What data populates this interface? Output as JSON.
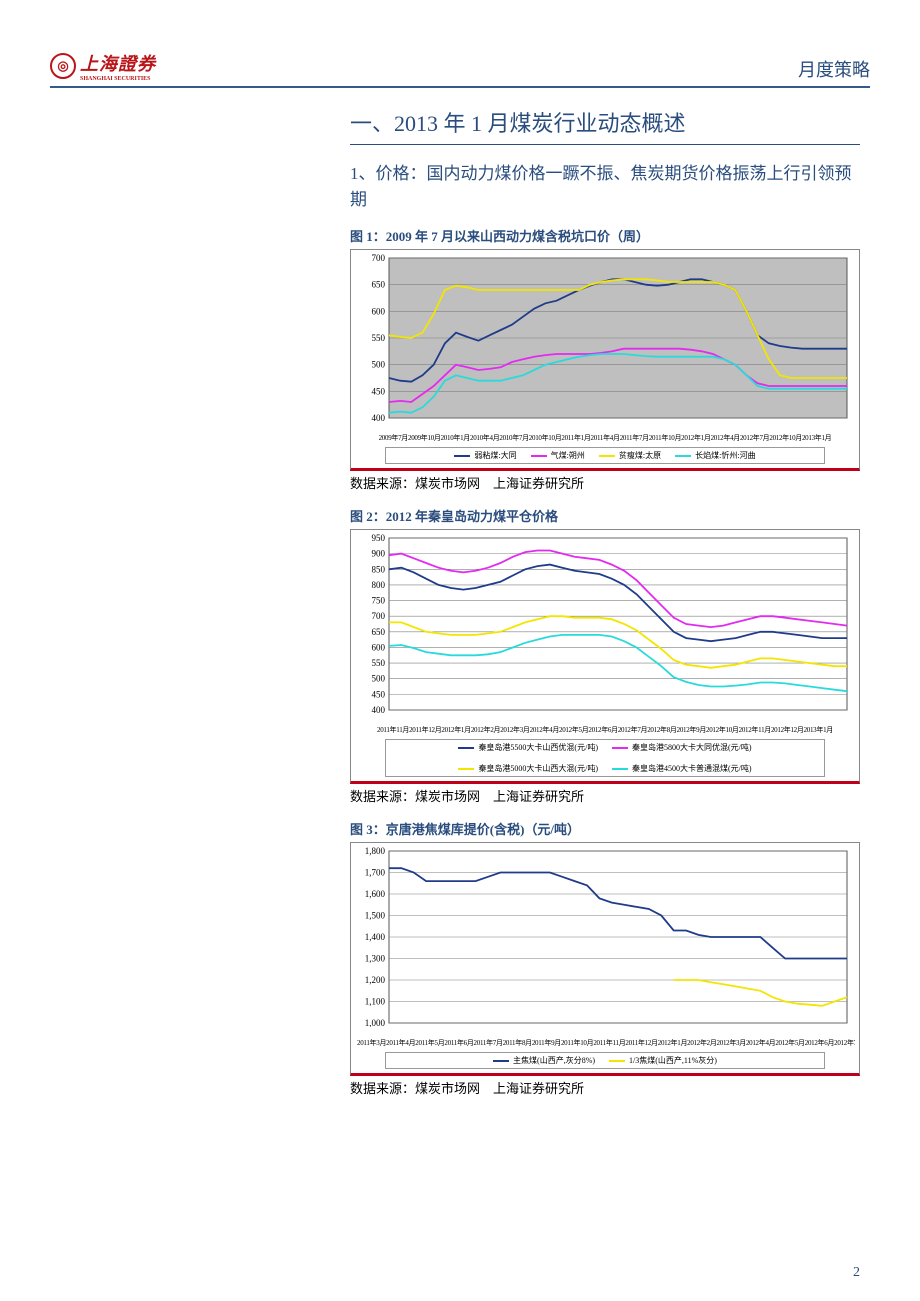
{
  "header": {
    "logo_text": "上海證券",
    "logo_sub": "SHANGHAI SECURITIES",
    "doc_type": "月度策略"
  },
  "section_title": "一、2013 年 1 月煤炭行业动态概述",
  "sub_title": "1、价格：国内动力煤价格一蹶不振、焦炭期货价格振荡上行引领预期",
  "page_num": "2",
  "source_text": "数据来源：煤炭市场网　上海证券研究所",
  "chart1": {
    "title": "图 1：2009 年 7 月以来山西动力煤含税坑口价（周）",
    "type": "line",
    "ylim": [
      400,
      700
    ],
    "ytick_step": 50,
    "plot_bg": "#bfbfbf",
    "grid_color": "#808080",
    "xaxis_text": "2009年7月2009年10月2010年1月2010年4月2010年7月2010年10月2011年1月2011年4月2011年7月2011年10月2012年1月2012年4月2012年7月2012年10月2013年1月",
    "series": [
      {
        "label": "弱粘煤:大同",
        "color": "#1f3b8a",
        "values": [
          475,
          470,
          468,
          480,
          500,
          540,
          560,
          552,
          545,
          555,
          565,
          575,
          590,
          605,
          615,
          620,
          630,
          640,
          648,
          655,
          660,
          660,
          655,
          650,
          648,
          650,
          655,
          660,
          660,
          655,
          650,
          640,
          600,
          555,
          540,
          535,
          532,
          530,
          530,
          530,
          530,
          530
        ]
      },
      {
        "label": "气煤:朔州",
        "color": "#e32af0",
        "values": [
          430,
          432,
          430,
          445,
          460,
          480,
          500,
          495,
          490,
          492,
          495,
          505,
          510,
          515,
          518,
          520,
          520,
          520,
          520,
          522,
          525,
          530,
          530,
          530,
          530,
          530,
          530,
          528,
          525,
          520,
          510,
          500,
          480,
          465,
          460,
          460,
          460,
          460,
          460,
          460,
          460,
          460
        ]
      },
      {
        "label": "贫瘦煤:太原",
        "color": "#f2e600",
        "values": [
          555,
          552,
          550,
          560,
          595,
          640,
          648,
          645,
          640,
          640,
          640,
          640,
          640,
          640,
          640,
          640,
          640,
          640,
          650,
          655,
          658,
          660,
          660,
          660,
          658,
          655,
          655,
          655,
          655,
          655,
          650,
          640,
          600,
          555,
          510,
          480,
          475,
          475,
          475,
          475,
          475,
          475
        ]
      },
      {
        "label": "长焰煤:忻州:河曲",
        "color": "#2adada",
        "values": [
          410,
          412,
          410,
          420,
          440,
          470,
          480,
          475,
          470,
          470,
          470,
          475,
          480,
          490,
          500,
          505,
          510,
          515,
          518,
          520,
          520,
          520,
          518,
          516,
          515,
          515,
          515,
          515,
          515,
          515,
          510,
          500,
          480,
          460,
          455,
          455,
          455,
          455,
          455,
          455,
          455,
          455
        ]
      }
    ]
  },
  "chart2": {
    "title": "图 2：2012 年秦皇岛动力煤平仓价格",
    "type": "line",
    "ylim": [
      400,
      950
    ],
    "ytick_step": 50,
    "plot_bg": "#ffffff",
    "grid_color": "#808080",
    "xaxis_text": "2011年11月2011年12月2012年1月2012年2月2012年3月2012年4月2012年5月2012年6月2012年7月2012年8月2012年9月2012年10月2012年11月2012年12月2013年1月",
    "series": [
      {
        "label": "秦皇岛港5500大卡山西优混(元/吨)",
        "color": "#1f3b8a",
        "values": [
          850,
          855,
          840,
          820,
          800,
          790,
          785,
          790,
          800,
          810,
          830,
          850,
          860,
          865,
          855,
          845,
          840,
          835,
          820,
          800,
          770,
          730,
          690,
          650,
          630,
          625,
          620,
          625,
          630,
          640,
          650,
          650,
          645,
          640,
          635,
          630,
          630,
          630
        ]
      },
      {
        "label": "秦皇岛港5800大卡大同优混(元/吨)",
        "color": "#e32af0",
        "values": [
          895,
          900,
          885,
          870,
          855,
          845,
          840,
          845,
          855,
          870,
          890,
          905,
          910,
          910,
          900,
          890,
          885,
          880,
          865,
          845,
          815,
          775,
          735,
          695,
          675,
          670,
          665,
          670,
          680,
          690,
          700,
          700,
          695,
          690,
          685,
          680,
          675,
          670
        ]
      },
      {
        "label": "秦皇岛港5000大卡山西大混(元/吨)",
        "color": "#f2e600",
        "values": [
          680,
          680,
          665,
          650,
          645,
          640,
          640,
          640,
          645,
          650,
          665,
          680,
          690,
          700,
          700,
          695,
          695,
          695,
          690,
          675,
          655,
          625,
          595,
          560,
          545,
          540,
          535,
          540,
          545,
          555,
          565,
          565,
          560,
          555,
          550,
          545,
          540,
          540
        ]
      },
      {
        "label": "秦皇岛港4500大卡普通混煤(元/吨)",
        "color": "#2adada",
        "values": [
          605,
          608,
          598,
          585,
          580,
          575,
          575,
          575,
          578,
          585,
          600,
          615,
          625,
          635,
          640,
          640,
          640,
          640,
          635,
          620,
          600,
          570,
          540,
          505,
          490,
          480,
          475,
          475,
          478,
          482,
          488,
          488,
          485,
          480,
          475,
          470,
          465,
          460
        ]
      }
    ]
  },
  "chart3": {
    "title": "图 3：京唐港焦煤库提价(含税)（元/吨）",
    "type": "line",
    "ylim": [
      1000,
      1800
    ],
    "ytick_step": 100,
    "plot_bg": "#ffffff",
    "grid_color": "#808080",
    "xaxis_text": "2011年3月2011年4月2011年5月2011年6月2011年7月2011年8月2011年9月2011年10月2011年11月2011年12月2012年1月2012年2月2012年3月2012年4月2012年5月2012年6月2012年7月2012年8月2012年9月2012年10月2012年11月2012年12月2013年1月",
    "series": [
      {
        "label": "主焦煤(山西产,灰分8%)",
        "color": "#1f3b8a",
        "values": [
          1720,
          1720,
          1700,
          1660,
          1660,
          1660,
          1660,
          1660,
          1680,
          1700,
          1700,
          1700,
          1700,
          1700,
          1680,
          1660,
          1640,
          1580,
          1560,
          1550,
          1540,
          1530,
          1500,
          1430,
          1430,
          1410,
          1400,
          1400,
          1400,
          1400,
          1400,
          1350,
          1300,
          1300,
          1300,
          1300,
          1300,
          1300
        ]
      },
      {
        "label": "1/3焦煤(山西产,11%灰分)",
        "color": "#f2e600",
        "values": [
          null,
          null,
          null,
          null,
          null,
          null,
          null,
          null,
          null,
          null,
          null,
          null,
          null,
          null,
          null,
          null,
          null,
          null,
          null,
          null,
          null,
          null,
          null,
          1200,
          1200,
          1200,
          1190,
          1180,
          1170,
          1160,
          1150,
          1120,
          1100,
          1090,
          1085,
          1080,
          1100,
          1120
        ]
      }
    ]
  }
}
